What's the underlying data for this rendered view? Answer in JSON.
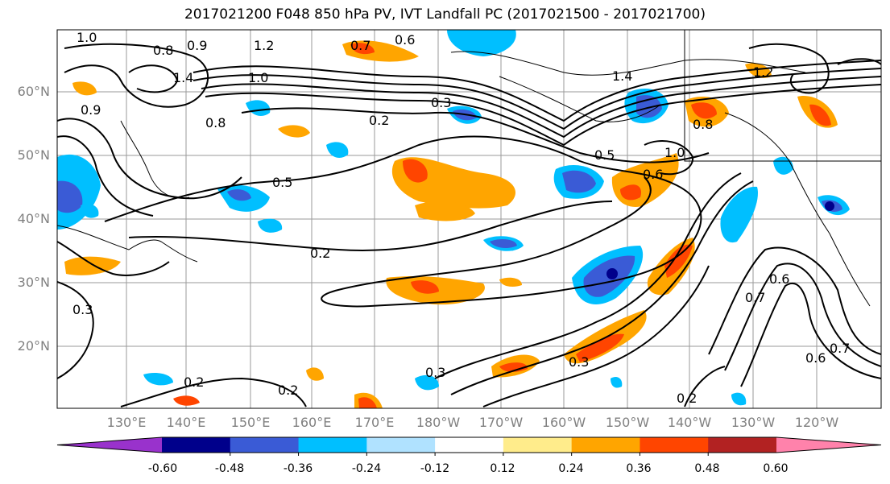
{
  "title": "2017021200 F048 850 hPa PV, IVT Landfall PC (2017021500 - 2017021700)",
  "lat_labels": [
    "60°N",
    "50°N",
    "40°N",
    "30°N",
    "20°N"
  ],
  "lon_labels": [
    "130°E",
    "140°E",
    "150°E",
    "160°E",
    "170°E",
    "180°W",
    "170°W",
    "160°W",
    "150°W",
    "140°W",
    "130°W",
    "120°W"
  ],
  "contour_labels": [
    "1.0",
    "0.8",
    "0.9",
    "1.2",
    "0.7",
    "0.6",
    "1.4",
    "1.0",
    "0.3",
    "0.2",
    "0.5",
    "0.2",
    "1.4",
    "1.0",
    "0.6",
    "0.8",
    "0.5",
    "0.2",
    "0.3",
    "0.2",
    "0.7",
    "0.6",
    "0.3",
    "1.2",
    "0.3",
    "0.2",
    "0.7",
    "0.6",
    "0.8",
    "0.9"
  ],
  "colorbar": {
    "colors": [
      "#9932CC",
      "#00008B",
      "#3A5BD6",
      "#00BFFF",
      "#B0E2FF",
      "#FFFFFF",
      "#FFEC8B",
      "#FFA500",
      "#FF4500",
      "#B22222",
      "#FF82AB"
    ],
    "tick_labels": [
      "-0.60",
      "-0.48",
      "-0.36",
      "-0.24",
      "-0.12",
      "0.12",
      "0.24",
      "0.36",
      "0.48",
      "0.60"
    ]
  }
}
